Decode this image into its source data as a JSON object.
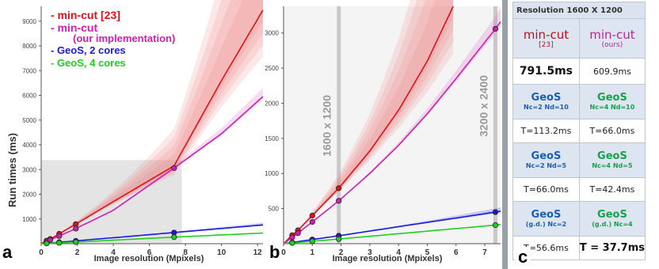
{
  "chart_data": [
    {
      "type": "line",
      "panel_label": "a",
      "xlabel": "Image resolution (Mpixels)",
      "ylabel": "Run times (ms)",
      "xlim": [
        0,
        12.3
      ],
      "ylim": [
        0,
        9600
      ],
      "xticks": [
        0,
        2,
        4,
        6,
        8,
        10,
        12
      ],
      "yticks": [
        1000,
        2000,
        3000,
        4000,
        5000,
        6000,
        7000,
        8000,
        9000
      ],
      "zoom_region": {
        "x": [
          0,
          7.8
        ],
        "y": [
          0,
          3380
        ]
      },
      "legend": {
        "placement": "top-left",
        "entries": [
          {
            "label": "- min-cut [23]",
            "color": "#e0101b"
          },
          {
            "label": "- min-cut",
            "color": "#d01fb0"
          },
          {
            "label": "(our implementation)",
            "color": "#d01fb0"
          },
          {
            "label": "- GeoS, 2 cores",
            "color": "#1a1ad8"
          },
          {
            "label": "- GeoS, 4 cores",
            "color": "#1fcf1f"
          }
        ]
      },
      "series": [
        {
          "key": "mincut23",
          "color": "#e0101b",
          "x": [
            0,
            0.3,
            0.5,
            1.0,
            1.92,
            4,
            7.37,
            10,
            12.3
          ],
          "y": [
            0,
            120,
            190,
            400,
            790,
            1700,
            3150,
            6600,
            9450
          ],
          "points": [
            [
              0.3,
              120
            ],
            [
              0.5,
              190
            ],
            [
              1.0,
              400
            ],
            [
              1.92,
              790
            ]
          ]
        },
        {
          "key": "mincut_ours",
          "color": "#d01fb0",
          "x": [
            0,
            0.3,
            0.5,
            1.0,
            1.92,
            4,
            7.37,
            10,
            12.3
          ],
          "y": [
            0,
            90,
            150,
            310,
            610,
            1350,
            3060,
            4450,
            5950
          ],
          "points": [
            [
              0.3,
              90
            ],
            [
              0.5,
              150
            ],
            [
              1.0,
              310
            ],
            [
              1.92,
              610
            ],
            [
              7.37,
              3060
            ]
          ]
        },
        {
          "key": "geos2",
          "color": "#1a1ad8",
          "x": [
            0,
            1.92,
            7.37,
            12.3
          ],
          "y": [
            0,
            113,
            450,
            760
          ],
          "points": [
            [
              0.3,
              18
            ],
            [
              1.0,
              60
            ],
            [
              1.92,
              113
            ],
            [
              7.37,
              450
            ]
          ]
        },
        {
          "key": "geos4",
          "color": "#1fcf1f",
          "x": [
            0,
            1.92,
            7.37,
            12.3
          ],
          "y": [
            0,
            66,
            265,
            430
          ],
          "points": [
            [
              0.3,
              10
            ],
            [
              1.0,
              35
            ],
            [
              1.92,
              66
            ],
            [
              7.37,
              265
            ]
          ]
        }
      ]
    },
    {
      "type": "line",
      "panel_label": "b",
      "xlabel": "Image resolution (Mpixels)",
      "xlim": [
        0,
        7.55
      ],
      "ylim": [
        0,
        3380
      ],
      "xticks": [
        0,
        1,
        2,
        3,
        4,
        5,
        6,
        7
      ],
      "yticks": [
        500,
        1000,
        1500,
        2000,
        2500,
        3000
      ],
      "markers": [
        {
          "x": 1.92,
          "label": "1600 x 1200"
        },
        {
          "x": 7.37,
          "label": "3200 x 2400"
        }
      ],
      "series": [
        {
          "key": "mincut23",
          "color": "#e0101b",
          "x": [
            0,
            0.3,
            0.5,
            1.0,
            1.92,
            3,
            4,
            5,
            5.9
          ],
          "y": [
            0,
            120,
            190,
            400,
            790,
            1320,
            1900,
            2600,
            3380
          ],
          "points": [
            [
              0.3,
              120
            ],
            [
              0.5,
              190
            ],
            [
              1.0,
              400
            ],
            [
              1.92,
              790
            ]
          ]
        },
        {
          "key": "mincut_ours",
          "color": "#d01fb0",
          "x": [
            0,
            0.3,
            0.5,
            1.0,
            1.92,
            3,
            4,
            5,
            6,
            7.37,
            7.55
          ],
          "y": [
            0,
            90,
            150,
            310,
            610,
            1000,
            1400,
            1850,
            2350,
            3060,
            3160
          ],
          "points": [
            [
              0.3,
              90
            ],
            [
              0.5,
              150
            ],
            [
              1.0,
              310
            ],
            [
              1.92,
              610
            ],
            [
              7.37,
              3060
            ]
          ]
        },
        {
          "key": "geos2",
          "color": "#1a1ad8",
          "x": [
            0,
            1.92,
            7.37,
            7.55
          ],
          "y": [
            0,
            113,
            450,
            462
          ],
          "points": [
            [
              0.3,
              18
            ],
            [
              1.0,
              60
            ],
            [
              1.92,
              113
            ],
            [
              7.37,
              450
            ]
          ]
        },
        {
          "key": "geos4",
          "color": "#1fcf1f",
          "x": [
            0,
            1.92,
            7.37,
            7.55
          ],
          "y": [
            0,
            66,
            265,
            272
          ],
          "points": [
            [
              0.3,
              10
            ],
            [
              1.0,
              35
            ],
            [
              1.92,
              66
            ],
            [
              7.37,
              265
            ]
          ]
        }
      ]
    },
    {
      "type": "table",
      "panel_label": "c",
      "title": "Resolution 1600 X 1200",
      "header_row": {
        "left": {
          "name": "min-cut",
          "ref": "[23]"
        },
        "right": {
          "name": "min-cut",
          "ref": "(ours)"
        }
      },
      "header_values": {
        "left": "791.5ms",
        "right": "609.9ms"
      },
      "rows": [
        {
          "left": {
            "name": "GeoS",
            "params": "Nc=2 Nd=10",
            "value": "T=113.2ms"
          },
          "right": {
            "name": "GeoS",
            "params": "Nc=4 Nd=10",
            "value": "T=66.0ms"
          }
        },
        {
          "left": {
            "name": "GeoS",
            "params": "Nc=2 Nd=5",
            "value": "T=66.0ms"
          },
          "right": {
            "name": "GeoS",
            "params": "Nc=4 Nd=5",
            "value": "T=42.4ms"
          }
        },
        {
          "left": {
            "name": "GeoS",
            "params": "(g.d.) Nc=2",
            "value": "T=56.6ms"
          },
          "right": {
            "name": "GeoS",
            "params": "(g.d.) Nc=4",
            "value": "T = 37.7ms"
          }
        }
      ]
    }
  ]
}
